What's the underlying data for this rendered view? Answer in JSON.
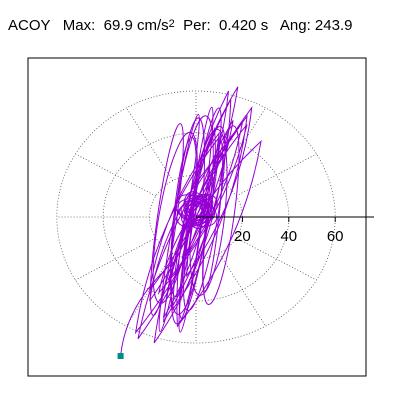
{
  "header": {
    "channel": "ACOY",
    "max_label": "Max:",
    "max_value": "69.9 cm/s",
    "max_unit_exp": "2",
    "per_label": "Per:",
    "per_value": "0.420 s",
    "ang_label": "Ang:",
    "ang_value": "243.9"
  },
  "colors": {
    "trace": "#9400d3",
    "end_marker": "#008b8b",
    "frame": "#000000",
    "grid": "#555555"
  },
  "chart_data": {
    "type": "scatter",
    "subtype": "polar orbit trajectory",
    "title": "",
    "radial_ticks": [
      20,
      40,
      60
    ],
    "rings": [
      20,
      40,
      60
    ],
    "radial_max": 75,
    "max_magnitude": 69.9,
    "max_unit": "cm/s2",
    "period_s": 0.42,
    "angle_deg": 243.9,
    "dominant_axis_deg_from_x": 80,
    "trace": {
      "x": [
        0,
        8,
        -6,
        15,
        -14,
        12,
        -18,
        22,
        -10,
        18,
        -20,
        10,
        -25,
        20,
        -12,
        28,
        -8,
        14,
        -20,
        6,
        -14,
        24,
        -4,
        16,
        -26,
        10,
        -6,
        22,
        -16,
        4
      ],
      "y": [
        0,
        42,
        -38,
        56,
        -50,
        30,
        -60,
        48,
        -44,
        62,
        -35,
        40,
        -58,
        45,
        -30,
        36,
        -52,
        60,
        -40,
        25,
        -48,
        52,
        -28,
        46,
        -55,
        38,
        -20,
        44,
        -36,
        10
      ]
    },
    "end_point": {
      "x": -32.5,
      "y": -66.2
    },
    "grid": true
  }
}
